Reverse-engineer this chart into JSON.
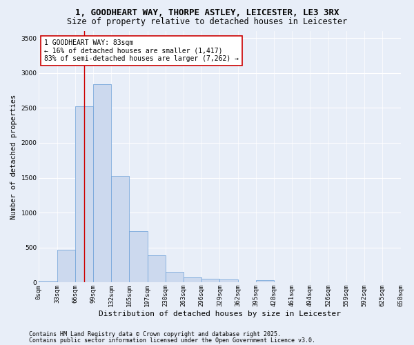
{
  "title_line1": "1, GOODHEART WAY, THORPE ASTLEY, LEICESTER, LE3 3RX",
  "title_line2": "Size of property relative to detached houses in Leicester",
  "xlabel": "Distribution of detached houses by size in Leicester",
  "ylabel": "Number of detached properties",
  "bar_color": "#ccd9ee",
  "bar_edge_color": "#6a9fd8",
  "background_color": "#e8eef8",
  "grid_color": "#ffffff",
  "bin_labels": [
    "0sqm",
    "33sqm",
    "66sqm",
    "99sqm",
    "132sqm",
    "165sqm",
    "197sqm",
    "230sqm",
    "263sqm",
    "296sqm",
    "329sqm",
    "362sqm",
    "395sqm",
    "428sqm",
    "461sqm",
    "494sqm",
    "526sqm",
    "559sqm",
    "592sqm",
    "625sqm",
    "658sqm"
  ],
  "bar_values": [
    20,
    470,
    2520,
    2840,
    1530,
    740,
    390,
    155,
    75,
    50,
    45,
    0,
    30,
    0,
    0,
    0,
    0,
    0,
    0,
    0
  ],
  "ylim": [
    0,
    3600
  ],
  "yticks": [
    0,
    500,
    1000,
    1500,
    2000,
    2500,
    3000,
    3500
  ],
  "vline_x": 2.5,
  "vline_color": "#cc0000",
  "annotation_text": "1 GOODHEART WAY: 83sqm\n← 16% of detached houses are smaller (1,417)\n83% of semi-detached houses are larger (7,262) →",
  "annotation_box_color": "#ffffff",
  "annotation_box_edge": "#cc0000",
  "footnote1": "Contains HM Land Registry data © Crown copyright and database right 2025.",
  "footnote2": "Contains public sector information licensed under the Open Government Licence v3.0.",
  "title_fontsize": 9,
  "subtitle_fontsize": 8.5,
  "xlabel_fontsize": 8,
  "ylabel_fontsize": 7.5,
  "tick_fontsize": 6.5,
  "annotation_fontsize": 7,
  "footnote_fontsize": 6
}
